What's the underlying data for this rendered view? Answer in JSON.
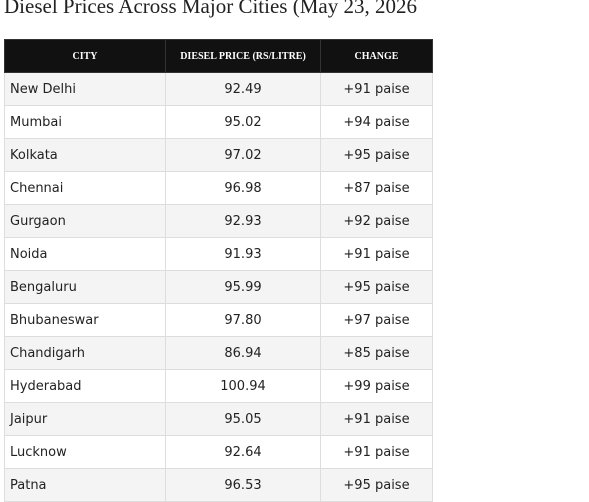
{
  "header": {
    "title": "Diesel Prices Across Major Cities (May 23, 2026"
  },
  "table": {
    "columns": [
      "City",
      "Diesel Price (Rs/Litre)",
      "Change"
    ],
    "rows": [
      [
        "New Delhi",
        "92.49",
        "+91 paise"
      ],
      [
        "Mumbai",
        "95.02",
        "+94 paise"
      ],
      [
        "Kolkata",
        "97.02",
        "+95 paise"
      ],
      [
        "Chennai",
        "96.98",
        "+87 paise"
      ],
      [
        "Gurgaon",
        "92.93",
        "+92 paise"
      ],
      [
        "Noida",
        "91.93",
        "+91 paise"
      ],
      [
        "Bengaluru",
        "95.99",
        "+95 paise"
      ],
      [
        "Bhubaneswar",
        "97.80",
        "+97 paise"
      ],
      [
        "Chandigarh",
        "86.94",
        "+85 paise"
      ],
      [
        "Hyderabad",
        "100.94",
        "+99 paise"
      ],
      [
        "Jaipur",
        "95.05",
        "+91 paise"
      ],
      [
        "Lucknow",
        "92.64",
        "+91 paise"
      ],
      [
        "Patna",
        "96.53",
        "+95 paise"
      ]
    ]
  }
}
